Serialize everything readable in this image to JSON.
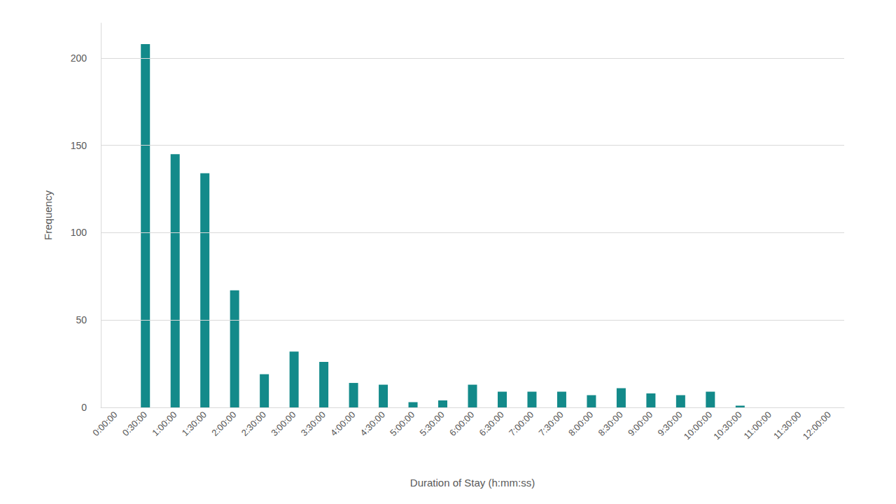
{
  "chart_data": {
    "type": "bar",
    "x_label": "Duration of Stay (h:mm:ss)",
    "y_label": "Frequency",
    "categories": [
      "0:00:00",
      "0:30:00",
      "1:00:00",
      "1:30:00",
      "2:00:00",
      "2:30:00",
      "3:00:00",
      "3:30:00",
      "4:00:00",
      "4:30:00",
      "5:00:00",
      "5:30:00",
      "6:00:00",
      "6:30:00",
      "7:00:00",
      "7:30:00",
      "8:00:00",
      "8:30:00",
      "9:00:00",
      "9:30:00",
      "10:00:00",
      "10:30:00",
      "11:00:00",
      "11:30:00",
      "12:00:00"
    ],
    "values": [
      0,
      208,
      145,
      134,
      67,
      19,
      32,
      26,
      14,
      13,
      3,
      4,
      13,
      9,
      9,
      9,
      7,
      11,
      8,
      7,
      9,
      1,
      0,
      0,
      0
    ],
    "color": "#138a8a",
    "ylim": [
      0,
      220
    ],
    "yticks": [
      0,
      50,
      100,
      150,
      200
    ],
    "grid": true
  }
}
